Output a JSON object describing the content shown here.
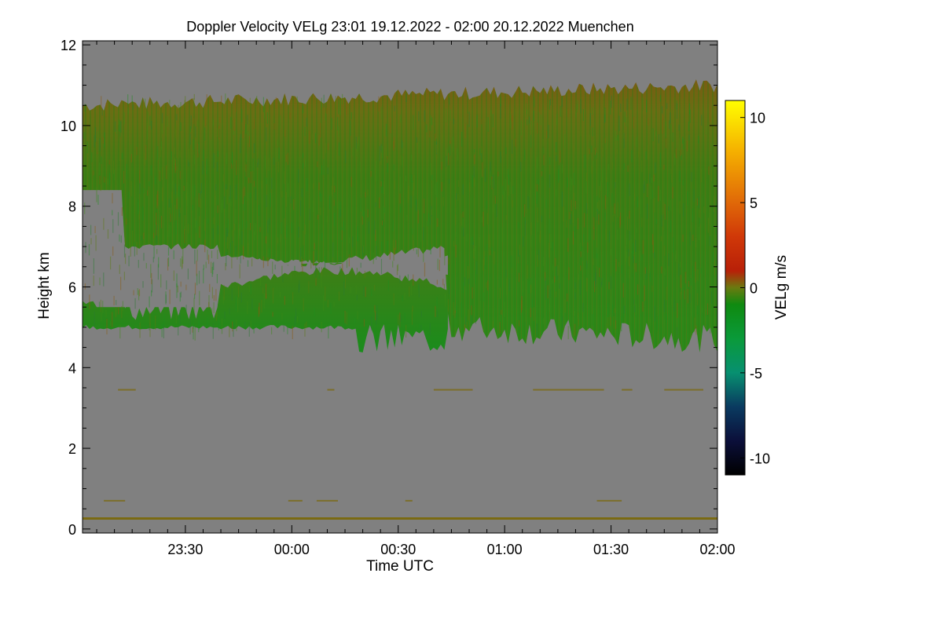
{
  "chart_data": {
    "type": "heatmap",
    "title": "Doppler Velocity VELg   23:01 19.12.2022 - 02:00 20.12.2022 Muenchen",
    "xlabel": "Time UTC",
    "ylabel": "Height km",
    "colorbar_label": "VELg m/s",
    "x_range_minutes_from_midnight": [
      -59,
      120
    ],
    "x_ticks": [
      {
        "label": "23:30",
        "minutes": -30
      },
      {
        "label": "00:00",
        "minutes": 0
      },
      {
        "label": "00:30",
        "minutes": 30
      },
      {
        "label": "01:00",
        "minutes": 60
      },
      {
        "label": "01:30",
        "minutes": 90
      },
      {
        "label": "02:00",
        "minutes": 120
      }
    ],
    "y_range_km": [
      -0.1,
      12.1
    ],
    "y_ticks": [
      0,
      2,
      4,
      6,
      8,
      10,
      12
    ],
    "color_range_ms": [
      -11,
      11
    ],
    "color_ticks": [
      10,
      5,
      0,
      -5,
      -10
    ],
    "colormap": [
      {
        "v": -11,
        "c": "#000000"
      },
      {
        "v": -9,
        "c": "#0b0f3a"
      },
      {
        "v": -7,
        "c": "#0a3a60"
      },
      {
        "v": -5,
        "c": "#079070"
      },
      {
        "v": -3,
        "c": "#0a9a3a"
      },
      {
        "v": -1,
        "c": "#0f8a10"
      },
      {
        "v": 0,
        "c": "#6a7a10"
      },
      {
        "v": 1,
        "c": "#b82008"
      },
      {
        "v": 3,
        "c": "#d03808"
      },
      {
        "v": 5,
        "c": "#e06808"
      },
      {
        "v": 8,
        "c": "#f5b000"
      },
      {
        "v": 11,
        "c": "#ffff00"
      }
    ],
    "background_color": "#808080",
    "cloud_regions": [
      {
        "name": "upper cloud layer",
        "time_start": -59,
        "time_end": 120,
        "top_km": [
          10.5,
          11.0
        ],
        "base_km": [
          8.4,
          4.5
        ],
        "velocity_ms": -1
      },
      {
        "name": "cloud top edge",
        "time_start": -59,
        "time_end": 120,
        "height_km": [
          10.0,
          10.6
        ],
        "velocity_ms": 1
      },
      {
        "name": "lower cloud deck",
        "time_start": -59,
        "time_end": 120,
        "top_km": [
          6.2,
          7.0
        ],
        "base_km": [
          5.0,
          4.6
        ],
        "velocity_ms": -2
      }
    ],
    "clear_regions": [
      {
        "name": "clear gap",
        "time_start": -56,
        "time_end": 44,
        "height_km": [
          5.2,
          8.0
        ]
      }
    ],
    "surface_layer_km": 0.25
  }
}
